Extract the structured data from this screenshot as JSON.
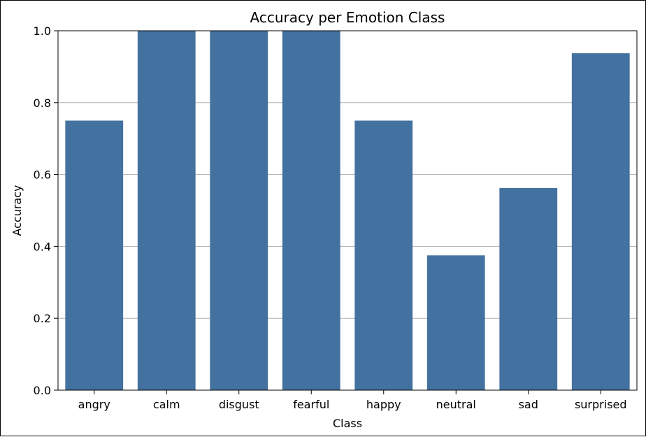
{
  "chart_data": {
    "type": "bar",
    "title": "Accuracy per Emotion Class",
    "xlabel": "Class",
    "ylabel": "Accuracy",
    "categories": [
      "angry",
      "calm",
      "disgust",
      "fearful",
      "happy",
      "neutral",
      "sad",
      "surprised"
    ],
    "values": [
      0.75,
      1.0,
      1.0,
      1.0,
      0.75,
      0.375,
      0.5625,
      0.9375
    ],
    "ylim": [
      0,
      1.0
    ],
    "yticks": [
      "0.0",
      "0.2",
      "0.4",
      "0.6",
      "0.8",
      "1.0"
    ],
    "grid": "horizontal",
    "legend": "none",
    "colors": {
      "bar": "#4472a0",
      "grid": "#b0b0b0",
      "axis": "#000000"
    }
  }
}
